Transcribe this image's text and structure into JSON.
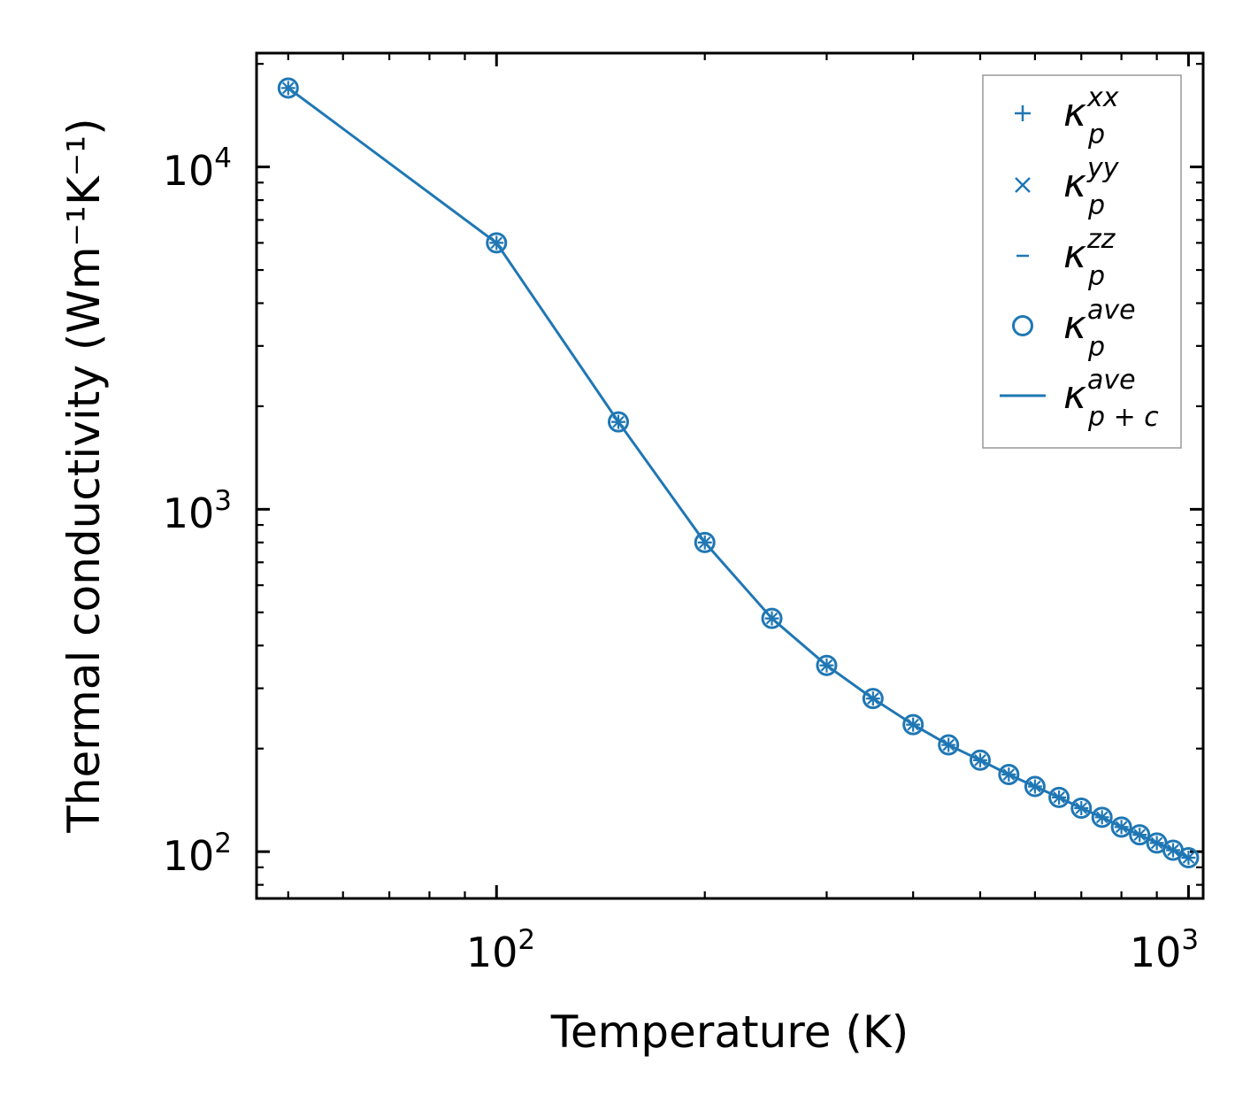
{
  "chart_data": {
    "type": "line",
    "xscale": "log",
    "yscale": "log",
    "xlabel": "Temperature (K)",
    "ylabel": "Thermal conductivity (Wm⁻¹K⁻¹)",
    "xlim": [
      45,
      1050
    ],
    "ylim": [
      73,
      21500
    ],
    "xticks": [
      {
        "base": "10",
        "exp": "2",
        "value": 100
      },
      {
        "base": "10",
        "exp": "3",
        "value": 1000
      }
    ],
    "yticks": [
      {
        "base": "10",
        "exp": "2",
        "value": 100
      },
      {
        "base": "10",
        "exp": "3",
        "value": 1000
      },
      {
        "base": "10",
        "exp": "4",
        "value": 10000
      }
    ],
    "x": [
      50,
      100,
      150,
      200,
      250,
      300,
      350,
      400,
      450,
      500,
      550,
      600,
      650,
      700,
      750,
      800,
      850,
      900,
      950,
      1000
    ],
    "series": [
      {
        "name": "kappa_p_xx",
        "marker": "plus",
        "values": [
          17000,
          6000,
          1800,
          800,
          480,
          350,
          280,
          235,
          205,
          185,
          168,
          155,
          144,
          134,
          126,
          118,
          112,
          106,
          101,
          96
        ]
      },
      {
        "name": "kappa_p_yy",
        "marker": "x",
        "values": [
          17000,
          6000,
          1800,
          800,
          480,
          350,
          280,
          235,
          205,
          185,
          168,
          155,
          144,
          134,
          126,
          118,
          112,
          106,
          101,
          96
        ]
      },
      {
        "name": "kappa_p_zz",
        "marker": "dash",
        "values": [
          17000,
          6000,
          1800,
          800,
          480,
          350,
          280,
          235,
          205,
          185,
          168,
          155,
          144,
          134,
          126,
          118,
          112,
          106,
          101,
          96
        ]
      },
      {
        "name": "kappa_p_ave",
        "marker": "circle",
        "values": [
          17000,
          6000,
          1800,
          800,
          480,
          350,
          280,
          235,
          205,
          185,
          168,
          155,
          144,
          134,
          126,
          118,
          112,
          106,
          101,
          96
        ]
      },
      {
        "name": "kappa_p+c_ave",
        "marker": "line",
        "values": [
          17000,
          6000,
          1800,
          800,
          480,
          350,
          280,
          235,
          205,
          185,
          168,
          155,
          144,
          134,
          126,
          118,
          112,
          106,
          101,
          96
        ]
      }
    ],
    "color": "#1f77b4",
    "legend": {
      "position": "top-right",
      "entries": [
        {
          "symbol": "+",
          "kappa": "κ",
          "sub": "p",
          "sup": "xx"
        },
        {
          "symbol": "×",
          "kappa": "κ",
          "sub": "p",
          "sup": "yy"
        },
        {
          "symbol": "–",
          "kappa": "κ",
          "sub": "p",
          "sup": "zz"
        },
        {
          "symbol": "o",
          "kappa": "κ",
          "sub": "p",
          "sup": "ave"
        },
        {
          "symbol": "—",
          "kappa": "κ",
          "sub": "p + c",
          "sup": "ave"
        }
      ]
    }
  }
}
